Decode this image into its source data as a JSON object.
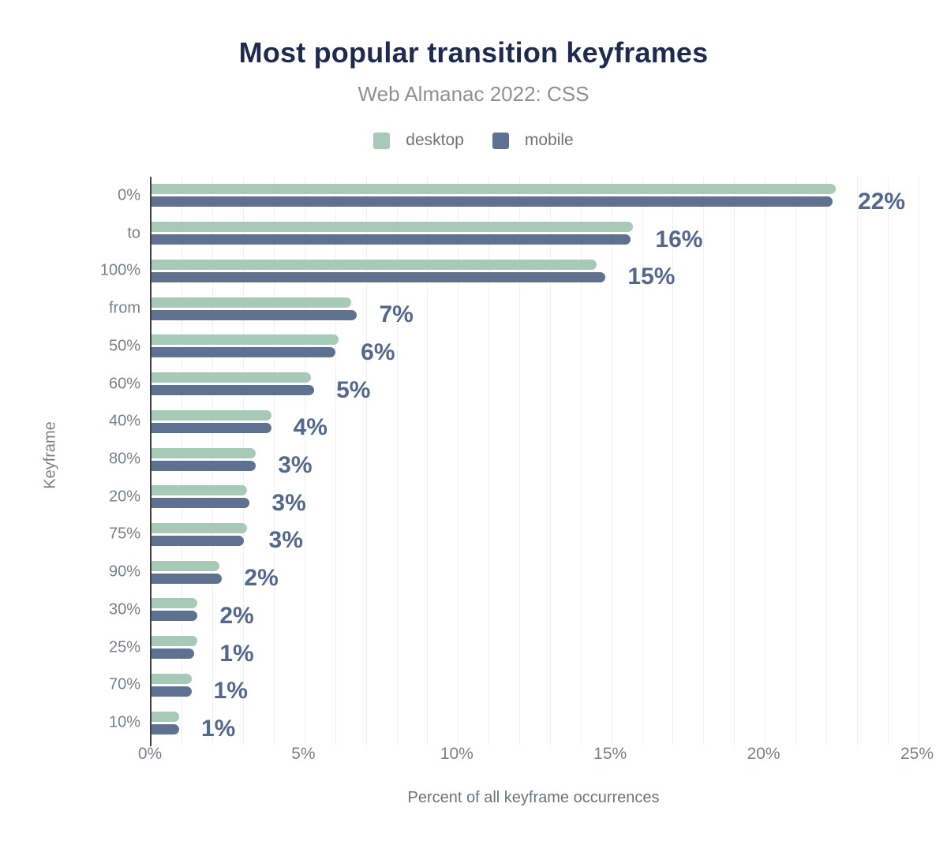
{
  "chart_data": {
    "type": "bar",
    "orientation": "horizontal",
    "title": "Most popular transition keyframes",
    "subtitle": "Web Almanac 2022: CSS",
    "xlabel": "Percent of all keyframe occurrences",
    "ylabel": "Keyframe",
    "legend_position": "top",
    "grid": true,
    "grid_step_percent": 1,
    "xlim": [
      0,
      25
    ],
    "x_ticks": [
      "0%",
      "5%",
      "10%",
      "15%",
      "20%",
      "25%"
    ],
    "x_tick_values": [
      0,
      5,
      10,
      15,
      20,
      25
    ],
    "categories": [
      "0%",
      "to",
      "100%",
      "from",
      "50%",
      "60%",
      "40%",
      "80%",
      "20%",
      "75%",
      "90%",
      "30%",
      "25%",
      "70%",
      "10%"
    ],
    "series": [
      {
        "name": "desktop",
        "color": "#a7cab8",
        "values": [
          22.3,
          15.7,
          14.5,
          6.5,
          6.1,
          5.2,
          3.9,
          3.4,
          3.1,
          3.1,
          2.2,
          1.5,
          1.5,
          1.3,
          0.9
        ]
      },
      {
        "name": "mobile",
        "color": "#5e7190",
        "values": [
          22.2,
          15.6,
          14.8,
          6.7,
          6.0,
          5.3,
          3.9,
          3.4,
          3.2,
          3.0,
          2.3,
          1.5,
          1.4,
          1.3,
          0.9
        ]
      }
    ],
    "value_labels": [
      "22%",
      "16%",
      "15%",
      "7%",
      "6%",
      "5%",
      "4%",
      "3%",
      "3%",
      "3%",
      "2%",
      "2%",
      "1%",
      "1%",
      "1%"
    ]
  },
  "colors": {
    "title": "#1f2b4e",
    "subtitle": "#8e9092",
    "desktop_bar": "#a7cab8",
    "mobile_bar": "#5e7190",
    "value_label": "#54688e",
    "axis_line": "#3f3f3f",
    "gridline": "#f0f0f3",
    "tick_label": "#7d8187"
  }
}
